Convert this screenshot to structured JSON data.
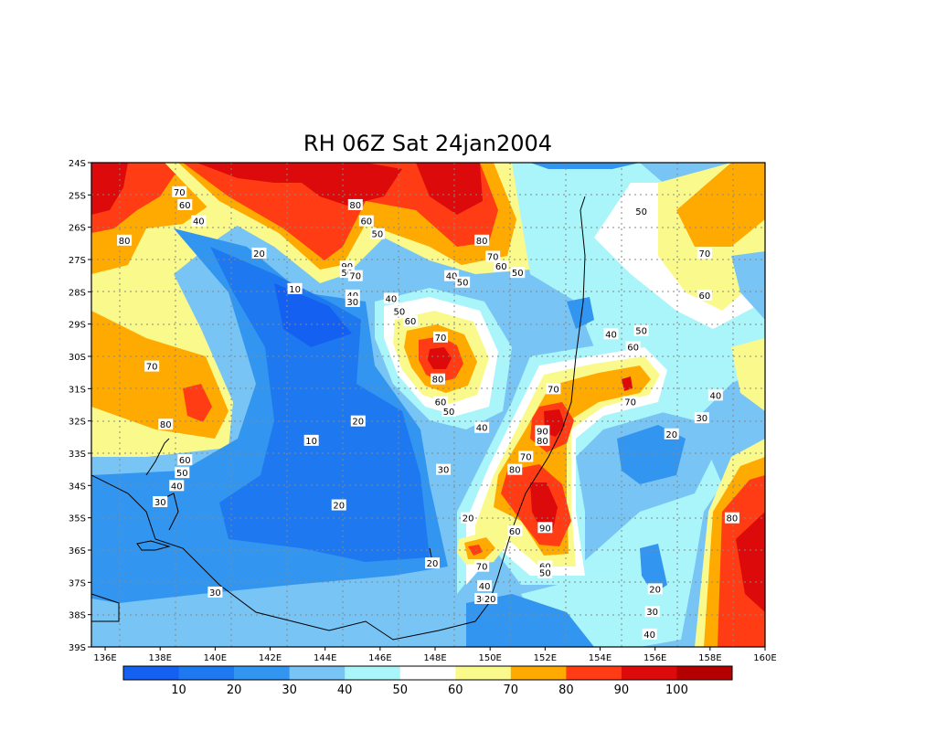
{
  "title": "RH 06Z Sat 24jan2004",
  "colors": {
    "b0": "#1460f0",
    "b10": "#1e78f0",
    "b20": "#3296f0",
    "b30": "#78c4f5",
    "b40": "#aaf5fa",
    "b50": "#ffffff",
    "b60": "#fafa8c",
    "b70": "#ffaa00",
    "b80": "#ff3c14",
    "b90": "#dc0a0a",
    "b100": "#b40000"
  },
  "chart_data": {
    "type": "contour-map",
    "variable": "RH",
    "lon_ticks": [
      "136E",
      "138E",
      "140E",
      "142E",
      "144E",
      "146E",
      "148E",
      "150E",
      "152E",
      "154E",
      "156E",
      "158E",
      "160E"
    ],
    "lat_ticks": [
      "24S",
      "25S",
      "26S",
      "27S",
      "28S",
      "29S",
      "30S",
      "31S",
      "32S",
      "33S",
      "34S",
      "35S",
      "36S",
      "37S",
      "38S",
      "39S"
    ],
    "colorbar_labels": [
      "10",
      "20",
      "30",
      "40",
      "50",
      "60",
      "70",
      "80",
      "90",
      "100"
    ],
    "grid": "dotted",
    "contour_labels": [
      {
        "text": "70",
        "lon": 138.7,
        "lat": -24.9
      },
      {
        "text": "60",
        "lon": 138.9,
        "lat": -25.3
      },
      {
        "text": "40",
        "lon": 139.4,
        "lat": -25.8
      },
      {
        "text": "80",
        "lon": 136.7,
        "lat": -26.4
      },
      {
        "text": "20",
        "lon": 141.6,
        "lat": -26.8
      },
      {
        "text": "10",
        "lon": 142.9,
        "lat": -27.9
      },
      {
        "text": "80",
        "lon": 145.1,
        "lat": -25.3
      },
      {
        "text": "60",
        "lon": 145.5,
        "lat": -25.8
      },
      {
        "text": "50",
        "lon": 145.9,
        "lat": -26.2
      },
      {
        "text": "90",
        "lon": 144.8,
        "lat": -27.2
      },
      {
        "text": "50",
        "lon": 144.8,
        "lat": -27.4
      },
      {
        "text": "70",
        "lon": 145.1,
        "lat": -27.5
      },
      {
        "text": "40",
        "lon": 145.0,
        "lat": -28.1
      },
      {
        "text": "30",
        "lon": 145.0,
        "lat": -28.3
      },
      {
        "text": "40",
        "lon": 146.4,
        "lat": -28.2
      },
      {
        "text": "50",
        "lon": 146.7,
        "lat": -28.6
      },
      {
        "text": "60",
        "lon": 147.1,
        "lat": -28.9
      },
      {
        "text": "70",
        "lon": 148.2,
        "lat": -29.4
      },
      {
        "text": "80",
        "lon": 148.1,
        "lat": -30.7
      },
      {
        "text": "60",
        "lon": 148.2,
        "lat": -31.4
      },
      {
        "text": "50",
        "lon": 148.5,
        "lat": -31.7
      },
      {
        "text": "40",
        "lon": 149.7,
        "lat": -32.2
      },
      {
        "text": "20",
        "lon": 145.2,
        "lat": -32.0
      },
      {
        "text": "10",
        "lon": 143.5,
        "lat": -32.6
      },
      {
        "text": "30",
        "lon": 148.3,
        "lat": -33.5
      },
      {
        "text": "20",
        "lon": 149.2,
        "lat": -35.0
      },
      {
        "text": "20",
        "lon": 147.9,
        "lat": -36.4
      },
      {
        "text": "20",
        "lon": 144.5,
        "lat": -34.6
      },
      {
        "text": "30",
        "lon": 140.0,
        "lat": -37.3
      },
      {
        "text": "80",
        "lon": 149.7,
        "lat": -26.4
      },
      {
        "text": "70",
        "lon": 150.1,
        "lat": -26.9
      },
      {
        "text": "60",
        "lon": 150.4,
        "lat": -27.2
      },
      {
        "text": "50",
        "lon": 151.0,
        "lat": -27.4
      },
      {
        "text": "40",
        "lon": 148.6,
        "lat": -27.5
      },
      {
        "text": "50",
        "lon": 149.0,
        "lat": -27.7
      },
      {
        "text": "50",
        "lon": 155.5,
        "lat": -25.5
      },
      {
        "text": "70",
        "lon": 157.8,
        "lat": -26.8
      },
      {
        "text": "60",
        "lon": 157.8,
        "lat": -28.1
      },
      {
        "text": "40",
        "lon": 154.4,
        "lat": -29.3
      },
      {
        "text": "50",
        "lon": 155.5,
        "lat": -29.2
      },
      {
        "text": "60",
        "lon": 155.2,
        "lat": -29.7
      },
      {
        "text": "70",
        "lon": 155.1,
        "lat": -31.4
      },
      {
        "text": "70",
        "lon": 152.3,
        "lat": -31.0
      },
      {
        "text": "90",
        "lon": 151.9,
        "lat": -32.3
      },
      {
        "text": "80",
        "lon": 151.9,
        "lat": -32.6
      },
      {
        "text": "70",
        "lon": 151.3,
        "lat": -33.1
      },
      {
        "text": "80",
        "lon": 150.9,
        "lat": -33.5
      },
      {
        "text": "40",
        "lon": 158.2,
        "lat": -31.2
      },
      {
        "text": "30",
        "lon": 157.7,
        "lat": -31.9
      },
      {
        "text": "20",
        "lon": 156.6,
        "lat": -32.4
      },
      {
        "text": "90",
        "lon": 152.0,
        "lat": -35.3
      },
      {
        "text": "60",
        "lon": 150.9,
        "lat": -35.4
      },
      {
        "text": "70",
        "lon": 149.7,
        "lat": -36.5
      },
      {
        "text": "60",
        "lon": 152.0,
        "lat": -36.5
      },
      {
        "text": "50",
        "lon": 152.0,
        "lat": -36.7
      },
      {
        "text": "40",
        "lon": 149.8,
        "lat": -37.1
      },
      {
        "text": "30",
        "lon": 149.7,
        "lat": -37.5
      },
      {
        "text": "20",
        "lon": 150.0,
        "lat": -37.5
      },
      {
        "text": "20",
        "lon": 156.0,
        "lat": -37.2
      },
      {
        "text": "30",
        "lon": 155.9,
        "lat": -37.9
      },
      {
        "text": "40",
        "lon": 155.8,
        "lat": -38.6
      },
      {
        "text": "80",
        "lon": 158.8,
        "lat": -35.0
      },
      {
        "text": "80",
        "lon": 138.2,
        "lat": -32.1
      },
      {
        "text": "70",
        "lon": 137.7,
        "lat": -30.3
      },
      {
        "text": "60",
        "lon": 138.9,
        "lat": -33.2
      },
      {
        "text": "50",
        "lon": 138.8,
        "lat": -33.6
      },
      {
        "text": "40",
        "lon": 138.6,
        "lat": -34.0
      },
      {
        "text": "30",
        "lon": 138.0,
        "lat": -34.5
      }
    ]
  }
}
